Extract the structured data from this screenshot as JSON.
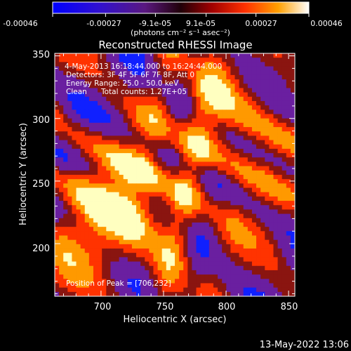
{
  "colorbar": {
    "tick_labels": [
      "-0.00046",
      "-0.00027",
      "-9.1e-05",
      "9.1e-05",
      "0.00027",
      "0.00046"
    ],
    "tick_values": [
      -0.00046,
      -0.00027,
      -9.1e-05,
      9.1e-05,
      0.00027,
      0.00046
    ],
    "range": [
      -0.00046,
      0.00046
    ],
    "units_label": "(photons cm⁻² s⁻¹ asec⁻²)"
  },
  "chart_data": {
    "type": "heatmap",
    "title": "Reconstructed RHESSI Image",
    "xlabel": "Heliocentric X (arcsec)",
    "ylabel": "Heliocentric Y (arcsec)",
    "xlim": [
      663,
      855
    ],
    "ylim": [
      158,
      352
    ],
    "xticks": [
      700,
      750,
      800,
      850
    ],
    "yticks": [
      200,
      250,
      300,
      350
    ],
    "xtick_labels": [
      "700",
      "750",
      "800",
      "850"
    ],
    "ytick_labels": [
      "200",
      "250",
      "300",
      "350"
    ],
    "colormap": [
      "#1020ff",
      "#6a1fa0",
      "#8a1510",
      "#ff3300",
      "#ff9900",
      "#ffffc0"
    ],
    "peak_position": [
      706,
      232
    ],
    "grid": false
  },
  "annotations": {
    "time_range": "4-May-2013 16:18:44.000 to 16:24:44.000",
    "detectors": "Detectors: 3F 4F 5F 6F 7F 8F, Att 0",
    "energy_range": "Energy Range: 25.0 - 50.0 keV",
    "clean_label": "Clean",
    "total_counts": "Total counts: 1.27E+05",
    "peak_label": "Position of Peak = [706,232]"
  },
  "footer": {
    "timestamp": "13-May-2022 13:06"
  }
}
